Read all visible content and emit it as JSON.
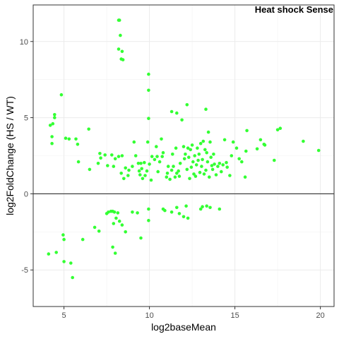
{
  "chart_data": {
    "type": "scatter",
    "title": "Heat shock Sense",
    "xlabel": "log2baseMean",
    "ylabel": "log2FoldChange (HS / WT)",
    "xlim": [
      3.2,
      20.8
    ],
    "ylim": [
      -7.4,
      12.4
    ],
    "xticks": [
      5,
      10,
      15,
      20
    ],
    "yticks": [
      -5,
      0,
      5,
      10
    ],
    "xtick_labels": [
      "5",
      "10",
      "15",
      "20"
    ],
    "ytick_labels": [
      "-5",
      "0",
      "5",
      "10"
    ],
    "hline": 0,
    "grid": true,
    "point_color": "#33ff33",
    "points": [
      [
        8.2,
        11.4
      ],
      [
        8.25,
        11.4
      ],
      [
        8.3,
        10.4
      ],
      [
        8.2,
        9.5
      ],
      [
        8.4,
        9.35
      ],
      [
        8.35,
        8.85
      ],
      [
        8.45,
        8.8
      ],
      [
        9.95,
        7.85
      ],
      [
        9.95,
        6.8
      ],
      [
        4.85,
        6.5
      ],
      [
        4.45,
        5.2
      ],
      [
        4.45,
        5.0
      ],
      [
        4.35,
        4.6
      ],
      [
        4.2,
        4.5
      ],
      [
        9.95,
        4.95
      ],
      [
        11.3,
        5.4
      ],
      [
        11.6,
        5.3
      ],
      [
        12.2,
        5.85
      ],
      [
        13.3,
        5.55
      ],
      [
        6.45,
        4.25
      ],
      [
        4.3,
        3.75
      ],
      [
        4.3,
        3.3
      ],
      [
        5.1,
        3.65
      ],
      [
        5.7,
        3.6
      ],
      [
        5.8,
        3.25
      ],
      [
        5.85,
        2.1
      ],
      [
        7.1,
        2.65
      ],
      [
        7.4,
        2.55
      ],
      [
        7.55,
        1.85
      ],
      [
        7.15,
        2.35
      ],
      [
        7.0,
        2.0
      ],
      [
        7.9,
        1.8
      ],
      [
        7.8,
        2.55
      ],
      [
        8.0,
        2.3
      ],
      [
        8.2,
        2.45
      ],
      [
        8.4,
        2.5
      ],
      [
        8.35,
        1.35
      ],
      [
        8.5,
        1.0
      ],
      [
        8.6,
        1.7
      ],
      [
        8.75,
        1.2
      ],
      [
        8.8,
        1.55
      ],
      [
        9.0,
        1.8
      ],
      [
        9.1,
        3.4
      ],
      [
        9.2,
        2.5
      ],
      [
        9.35,
        2.0
      ],
      [
        9.4,
        1.5
      ],
      [
        9.45,
        1.25
      ],
      [
        9.5,
        2.0
      ],
      [
        9.55,
        1.65
      ],
      [
        9.6,
        1.0
      ],
      [
        9.7,
        2.05
      ],
      [
        9.75,
        1.2
      ],
      [
        9.85,
        1.5
      ],
      [
        9.9,
        3.4
      ],
      [
        10.0,
        1.95
      ],
      [
        10.1,
        0.9
      ],
      [
        10.15,
        2.45
      ],
      [
        10.3,
        2.25
      ],
      [
        10.4,
        3.1
      ],
      [
        10.45,
        2.45
      ],
      [
        10.5,
        1.45
      ],
      [
        10.6,
        2.1
      ],
      [
        10.7,
        3.6
      ],
      [
        10.75,
        2.45
      ],
      [
        10.8,
        2.7
      ],
      [
        11.0,
        1.1
      ],
      [
        11.05,
        1.35
      ],
      [
        11.1,
        1.8
      ],
      [
        11.2,
        0.95
      ],
      [
        11.3,
        1.55
      ],
      [
        11.35,
        2.6
      ],
      [
        11.4,
        1.8
      ],
      [
        11.5,
        1.1
      ],
      [
        11.55,
        3.0
      ],
      [
        11.6,
        1.35
      ],
      [
        11.7,
        1.5
      ],
      [
        11.75,
        1.15
      ],
      [
        11.8,
        2.0
      ],
      [
        11.9,
        4.85
      ],
      [
        12.0,
        3.1
      ],
      [
        12.05,
        2.3
      ],
      [
        12.1,
        2.6
      ],
      [
        12.2,
        1.6
      ],
      [
        12.25,
        3.0
      ],
      [
        12.3,
        2.4
      ],
      [
        12.35,
        1.0
      ],
      [
        12.4,
        2.9
      ],
      [
        12.45,
        1.75
      ],
      [
        12.5,
        3.2
      ],
      [
        12.55,
        2.1
      ],
      [
        12.6,
        1.3
      ],
      [
        12.65,
        2.5
      ],
      [
        12.7,
        1.15
      ],
      [
        12.75,
        1.9
      ],
      [
        12.8,
        3.0
      ],
      [
        12.85,
        2.2
      ],
      [
        12.9,
        2.6
      ],
      [
        12.95,
        1.4
      ],
      [
        13.0,
        3.3
      ],
      [
        13.05,
        1.8
      ],
      [
        13.1,
        2.25
      ],
      [
        13.15,
        3.45
      ],
      [
        13.2,
        1.3
      ],
      [
        13.25,
        2.9
      ],
      [
        13.3,
        1.55
      ],
      [
        13.35,
        2.7
      ],
      [
        13.4,
        2.1
      ],
      [
        13.45,
        4.05
      ],
      [
        13.5,
        1.1
      ],
      [
        13.55,
        3.4
      ],
      [
        13.6,
        2.4
      ],
      [
        13.65,
        1.85
      ],
      [
        13.7,
        1.6
      ],
      [
        13.75,
        2.6
      ],
      [
        13.8,
        1.95
      ],
      [
        13.9,
        1.25
      ],
      [
        14.0,
        1.8
      ],
      [
        14.1,
        2.0
      ],
      [
        14.2,
        1.45
      ],
      [
        14.3,
        1.9
      ],
      [
        14.4,
        3.55
      ],
      [
        14.5,
        2.05
      ],
      [
        14.55,
        1.75
      ],
      [
        14.7,
        1.2
      ],
      [
        14.8,
        2.5
      ],
      [
        14.9,
        3.4
      ],
      [
        15.1,
        3.0
      ],
      [
        15.25,
        2.3
      ],
      [
        15.4,
        2.1
      ],
      [
        15.6,
        1.1
      ],
      [
        15.65,
        2.8
      ],
      [
        15.7,
        4.15
      ],
      [
        16.3,
        2.95
      ],
      [
        16.5,
        3.55
      ],
      [
        16.7,
        3.25
      ],
      [
        16.75,
        3.2
      ],
      [
        17.3,
        2.2
      ],
      [
        17.5,
        4.2
      ],
      [
        17.65,
        4.3
      ],
      [
        19.0,
        3.45
      ],
      [
        19.9,
        2.85
      ],
      [
        5.3,
        3.6
      ],
      [
        6.5,
        1.6
      ],
      [
        7.5,
        -1.3
      ],
      [
        7.6,
        -1.2
      ],
      [
        7.75,
        -1.15
      ],
      [
        7.85,
        -1.15
      ],
      [
        7.95,
        -1.2
      ],
      [
        8.05,
        -1.6
      ],
      [
        8.15,
        -1.25
      ],
      [
        7.9,
        -1.95
      ],
      [
        8.25,
        -1.8
      ],
      [
        8.4,
        -2.05
      ],
      [
        8.6,
        -2.5
      ],
      [
        9.0,
        -1.2
      ],
      [
        9.3,
        -1.25
      ],
      [
        9.5,
        -2.9
      ],
      [
        9.95,
        -1.0
      ],
      [
        9.95,
        -1.75
      ],
      [
        10.8,
        -1.0
      ],
      [
        10.9,
        -1.1
      ],
      [
        11.3,
        -1.2
      ],
      [
        11.6,
        -0.9
      ],
      [
        11.75,
        -1.3
      ],
      [
        12.0,
        -1.5
      ],
      [
        12.15,
        -0.8
      ],
      [
        12.25,
        -1.6
      ],
      [
        13.0,
        -1.0
      ],
      [
        13.1,
        -0.85
      ],
      [
        13.35,
        -0.8
      ],
      [
        13.55,
        -0.9
      ],
      [
        14.1,
        -1.0
      ],
      [
        4.95,
        -2.7
      ],
      [
        5.0,
        -3.0
      ],
      [
        4.55,
        -3.85
      ],
      [
        4.1,
        -3.95
      ],
      [
        5.0,
        -4.45
      ],
      [
        5.4,
        -4.55
      ],
      [
        5.5,
        -5.5
      ],
      [
        6.1,
        -3.0
      ],
      [
        6.8,
        -2.2
      ],
      [
        7.05,
        -2.45
      ],
      [
        7.85,
        -3.5
      ],
      [
        8.0,
        -3.9
      ]
    ]
  }
}
